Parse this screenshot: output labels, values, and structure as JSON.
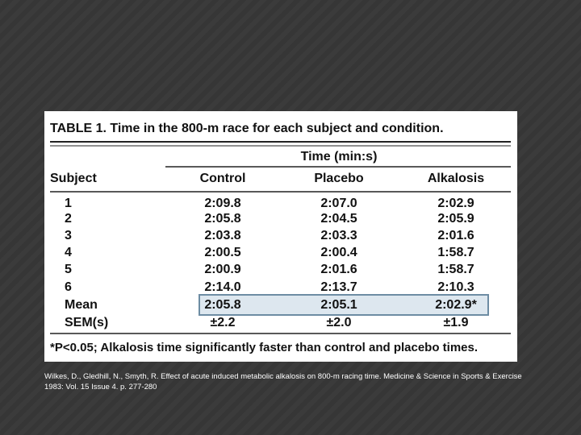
{
  "table": {
    "title": "TABLE 1. Time in the 800-m race for each subject and condition.",
    "group_header": "Time (min:s)",
    "columns": [
      "Subject",
      "Control",
      "Placebo",
      "Alkalosis"
    ],
    "rows": [
      [
        "1",
        "2:09.8",
        "2:07.0",
        "2:02.9"
      ],
      [
        "2",
        "2:05.8",
        "2:04.5",
        "2:05.9"
      ],
      [
        "3",
        "2:03.8",
        "2:03.3",
        "2:01.6"
      ],
      [
        "4",
        "2:00.5",
        "2:00.4",
        "1:58.7"
      ],
      [
        "5",
        "2:00.9",
        "2:01.6",
        "1:58.7"
      ],
      [
        "6",
        "2:14.0",
        "2:13.7",
        "2:10.3"
      ],
      [
        "Mean",
        "2:05.8",
        "2:05.1",
        "2:02.9*"
      ],
      [
        "SEM(s)",
        "±2.2",
        "±2.0",
        "±1.9"
      ]
    ],
    "footnote": "*P<0.05; Alkalosis time significantly faster than control and placebo times."
  },
  "caption": "Wilkes, D., Gledhill, N., Smyth, R. Effect of acute induced metabolic alkalosis on 800-m racing time. Medicine & Science in Sports & Exercise 1983: Vol. 15 Issue 4. p. 277-280"
}
